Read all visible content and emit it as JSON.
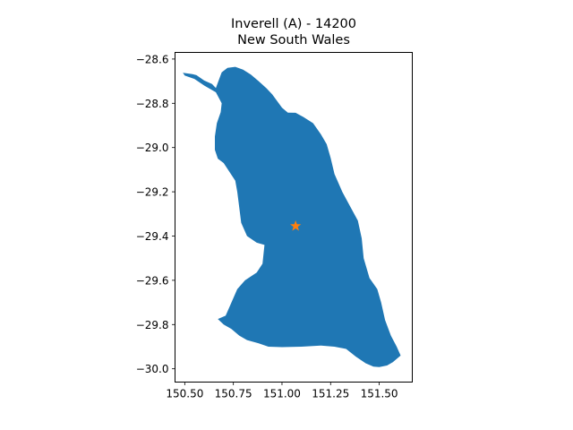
{
  "title": {
    "line1": "Inverell (A) - 14200",
    "line2": "New South Wales"
  },
  "colors": {
    "region_fill": "#1f77b4",
    "marker": "#ff7f0e",
    "axes": "#000000",
    "background": "#ffffff"
  },
  "chart_data": {
    "type": "map",
    "title": "Inverell (A) - 14200\nNew South Wales",
    "xlim": [
      150.45,
      151.67
    ],
    "ylim": [
      -30.06,
      -28.57
    ],
    "x_ticks": [
      150.5,
      150.75,
      151.0,
      151.25,
      151.5
    ],
    "x_tick_labels": [
      "150.50",
      "150.75",
      "151.00",
      "151.25",
      "151.50"
    ],
    "y_ticks": [
      -28.6,
      -28.8,
      -29.0,
      -29.2,
      -29.4,
      -29.6,
      -29.8,
      -30.0
    ],
    "y_tick_labels": [
      "−28.6",
      "−28.8",
      "−29.0",
      "−29.2",
      "−29.4",
      "−29.6",
      "−29.8",
      "−30.0"
    ],
    "marker": {
      "symbol": "star",
      "lon": 151.07,
      "lat": -29.355
    },
    "region_outline": [
      [
        150.49,
        -28.662
      ],
      [
        150.54,
        -28.668
      ],
      [
        150.56,
        -28.673
      ],
      [
        150.6,
        -28.697
      ],
      [
        150.64,
        -28.713
      ],
      [
        150.66,
        -28.731
      ],
      [
        150.69,
        -28.66
      ],
      [
        150.72,
        -28.64
      ],
      [
        150.76,
        -28.635
      ],
      [
        150.8,
        -28.648
      ],
      [
        150.84,
        -28.67
      ],
      [
        150.88,
        -28.7
      ],
      [
        150.92,
        -28.732
      ],
      [
        150.95,
        -28.76
      ],
      [
        151.0,
        -28.82
      ],
      [
        151.03,
        -28.842
      ],
      [
        151.07,
        -28.843
      ],
      [
        151.11,
        -28.862
      ],
      [
        151.16,
        -28.89
      ],
      [
        151.2,
        -28.94
      ],
      [
        151.23,
        -28.985
      ],
      [
        151.25,
        -29.047
      ],
      [
        151.27,
        -29.12
      ],
      [
        151.31,
        -29.2
      ],
      [
        151.35,
        -29.265
      ],
      [
        151.39,
        -29.33
      ],
      [
        151.41,
        -29.41
      ],
      [
        151.42,
        -29.5
      ],
      [
        151.45,
        -29.59
      ],
      [
        151.49,
        -29.64
      ],
      [
        151.51,
        -29.7
      ],
      [
        151.53,
        -29.78
      ],
      [
        151.56,
        -29.85
      ],
      [
        151.59,
        -29.9
      ],
      [
        151.61,
        -29.94
      ],
      [
        151.57,
        -29.97
      ],
      [
        151.54,
        -29.985
      ],
      [
        151.5,
        -29.992
      ],
      [
        151.47,
        -29.99
      ],
      [
        151.43,
        -29.975
      ],
      [
        151.38,
        -29.945
      ],
      [
        151.33,
        -29.91
      ],
      [
        151.27,
        -29.9
      ],
      [
        151.2,
        -29.895
      ],
      [
        151.1,
        -29.9
      ],
      [
        151.0,
        -29.902
      ],
      [
        150.93,
        -29.9
      ],
      [
        150.88,
        -29.885
      ],
      [
        150.82,
        -29.87
      ],
      [
        150.78,
        -29.85
      ],
      [
        150.74,
        -29.82
      ],
      [
        150.7,
        -29.8
      ],
      [
        150.67,
        -29.775
      ],
      [
        150.71,
        -29.76
      ],
      [
        150.74,
        -29.7
      ],
      [
        150.77,
        -29.64
      ],
      [
        150.81,
        -29.6
      ],
      [
        150.87,
        -29.565
      ],
      [
        150.9,
        -29.525
      ],
      [
        150.91,
        -29.44
      ],
      [
        150.87,
        -29.43
      ],
      [
        150.82,
        -29.4
      ],
      [
        150.79,
        -29.34
      ],
      [
        150.78,
        -29.27
      ],
      [
        150.77,
        -29.2
      ],
      [
        150.76,
        -29.15
      ],
      [
        150.73,
        -29.11
      ],
      [
        150.7,
        -29.07
      ],
      [
        150.67,
        -29.05
      ],
      [
        150.655,
        -29.01
      ],
      [
        150.655,
        -28.95
      ],
      [
        150.665,
        -28.89
      ],
      [
        150.685,
        -28.84
      ],
      [
        150.69,
        -28.8
      ],
      [
        150.66,
        -28.75
      ],
      [
        150.6,
        -28.72
      ],
      [
        150.55,
        -28.69
      ],
      [
        150.5,
        -28.675
      ]
    ]
  }
}
